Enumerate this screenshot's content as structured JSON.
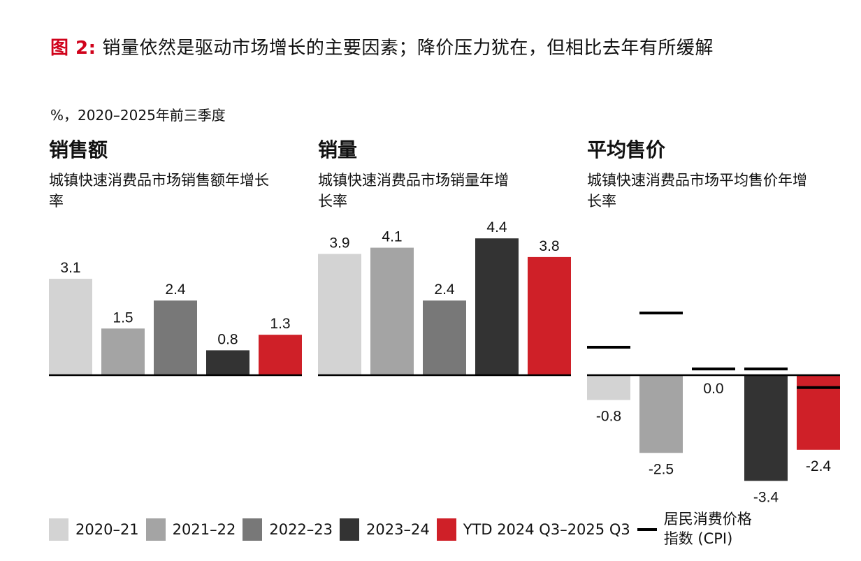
{
  "title": {
    "prefix": "图 2:",
    "text": "销量依然是驱动市场增长的主要因素；降价压力犹在，但相比去年有所缓解"
  },
  "unit_note": "%，2020–2025年前三季度",
  "colors": {
    "2020-21": "#d3d3d3",
    "2021-22": "#a4a4a4",
    "2022-23": "#787878",
    "2023-24": "#333333",
    "ytd": "#cf2028",
    "cpi": "#000000",
    "accent": "#d0021b"
  },
  "legend": [
    {
      "label": "2020–21",
      "color": "#d3d3d3",
      "type": "box"
    },
    {
      "label": "2021–22",
      "color": "#a4a4a4",
      "type": "box"
    },
    {
      "label": "2022–23",
      "color": "#787878",
      "type": "box"
    },
    {
      "label": "2023–24",
      "color": "#333333",
      "type": "box"
    },
    {
      "label": "YTD 2024 Q3–2025 Q3",
      "color": "#cf2028",
      "type": "box"
    },
    {
      "label": "居民消费价格指数 (CPI)",
      "line1": "居民消费价格",
      "line2": "指数 (CPI)",
      "color": "#000000",
      "type": "line"
    }
  ],
  "chart_data": [
    {
      "type": "bar",
      "title": "销售额",
      "subtitle": "城镇快速消费品市场销售额年增长率",
      "categories": [
        "2020–21",
        "2021–22",
        "2022–23",
        "2023–24",
        "YTD 2024 Q3–2025 Q3"
      ],
      "values": [
        3.1,
        1.5,
        2.4,
        0.8,
        1.3
      ],
      "labels": [
        "3.1",
        "1.5",
        "2.4",
        "0.8",
        "1.3"
      ],
      "ylabel": "%",
      "grid": false
    },
    {
      "type": "bar",
      "title": "销量",
      "subtitle": "城镇快速消费品市场销量年增长率",
      "categories": [
        "2020–21",
        "2021–22",
        "2022–23",
        "2023–24",
        "YTD 2024 Q3–2025 Q3"
      ],
      "values": [
        3.9,
        4.1,
        2.4,
        4.4,
        3.8
      ],
      "labels": [
        "3.9",
        "4.1",
        "2.4",
        "4.4",
        "3.8"
      ],
      "ylabel": "%",
      "grid": false
    },
    {
      "type": "bar",
      "title": "平均售价",
      "subtitle": "城镇快速消费品市场平均售价年增长率",
      "categories": [
        "2020–21",
        "2021–22",
        "2022–23",
        "2023–24",
        "YTD 2024 Q3–2025 Q3"
      ],
      "values": [
        -0.8,
        -2.5,
        0.0,
        -3.4,
        -2.4
      ],
      "labels": [
        "-0.8",
        "-2.5",
        "0.0",
        "-3.4",
        "-2.4"
      ],
      "cpi": {
        "name": "居民消费价格指数 (CPI)",
        "values": [
          0.9,
          2.0,
          0.2,
          0.2,
          -0.4
        ]
      },
      "ylabel": "%",
      "grid": false
    }
  ]
}
